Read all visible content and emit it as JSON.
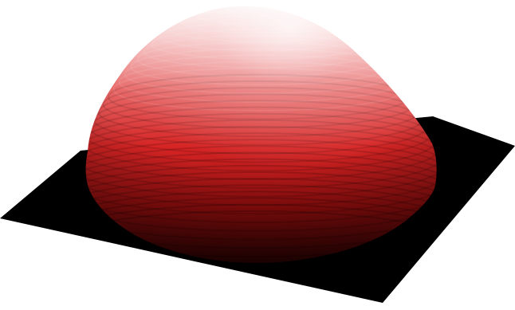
{
  "render": {
    "surface": "dome",
    "background_color": "#ffffff",
    "base_color": "#000000",
    "dome_color": "#d81e1e",
    "highlight_color": "#fbeeee"
  }
}
